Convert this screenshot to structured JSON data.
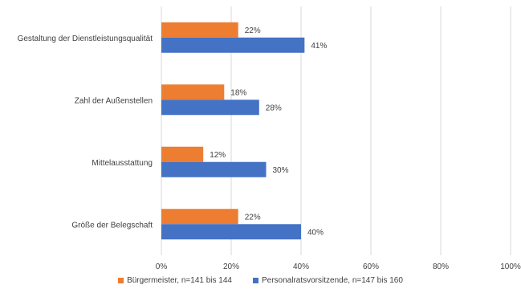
{
  "chart_data": {
    "type": "bar",
    "orientation": "horizontal",
    "categories": [
      "Gestaltung der Dienstleistungsqualität",
      "Zahl der Außenstellen",
      "Mittelausstattung",
      "Größe der Belegschaft"
    ],
    "series": [
      {
        "name": "Bürgermeister, n=141 bis 144",
        "color": "#ED7D31",
        "values": [
          22,
          18,
          12,
          22
        ],
        "labels": [
          "22%",
          "18%",
          "12%",
          "22%"
        ]
      },
      {
        "name": "Personalratsvorsitzende, n=147 bis 160",
        "color": "#4472C4",
        "values": [
          41,
          28,
          30,
          40
        ],
        "labels": [
          "41%",
          "28%",
          "30%",
          "40%"
        ]
      }
    ],
    "xlim": [
      0,
      100
    ],
    "x_ticks": [
      "0%",
      "20%",
      "40%",
      "60%",
      "80%",
      "100%"
    ],
    "grid": true,
    "legend_position": "bottom"
  }
}
